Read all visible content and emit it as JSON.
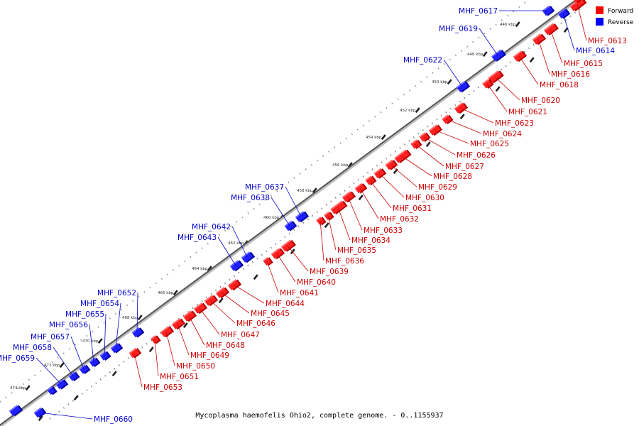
{
  "caption": "Mycoplasma haemofelis Ohio2, complete genome. - 0..1155937",
  "legend": [
    {
      "label": "Forward",
      "color": "#ff0000"
    },
    {
      "label": "Reverse",
      "color": "#0000ff"
    }
  ],
  "colors": {
    "forward": "#ff2020",
    "forward_dark": "#b00000",
    "reverse": "#2020ff",
    "reverse_dark": "#0000a0",
    "forward_label": "#cc0000",
    "reverse_label": "#0000cc",
    "backbone": "#555555"
  },
  "scale_ticks": [
    {
      "label": "446 kbp"
    },
    {
      "label": "448 kbp"
    },
    {
      "label": "450 kbp"
    },
    {
      "label": "452 kbp"
    },
    {
      "label": "454 kbp"
    },
    {
      "label": "456 kbp"
    },
    {
      "label": "458 kbp"
    },
    {
      "label": "460 kbp"
    },
    {
      "label": "462 kbp"
    },
    {
      "label": "464 kbp"
    },
    {
      "label": "466 kbp"
    },
    {
      "label": "468 kbp"
    },
    {
      "label": "470 kbp"
    },
    {
      "label": "472 kbp"
    },
    {
      "label": "474 kbp"
    }
  ],
  "genes": [
    {
      "id": "MHF_0613",
      "strand": "forward"
    },
    {
      "id": "MHF_0614",
      "strand": "reverse"
    },
    {
      "id": "MHF_0615",
      "strand": "forward"
    },
    {
      "id": "MHF_0616",
      "strand": "forward"
    },
    {
      "id": "MHF_0617",
      "strand": "reverse"
    },
    {
      "id": "MHF_0618",
      "strand": "forward"
    },
    {
      "id": "MHF_0619",
      "strand": "reverse"
    },
    {
      "id": "MHF_0620",
      "strand": "forward"
    },
    {
      "id": "MHF_0621",
      "strand": "forward"
    },
    {
      "id": "MHF_0622",
      "strand": "reverse"
    },
    {
      "id": "MHF_0623",
      "strand": "forward"
    },
    {
      "id": "MHF_0624",
      "strand": "forward"
    },
    {
      "id": "MHF_0625",
      "strand": "forward"
    },
    {
      "id": "MHF_0626",
      "strand": "forward"
    },
    {
      "id": "MHF_0627",
      "strand": "forward"
    },
    {
      "id": "MHF_0628",
      "strand": "forward"
    },
    {
      "id": "MHF_0629",
      "strand": "forward"
    },
    {
      "id": "MHF_0630",
      "strand": "forward"
    },
    {
      "id": "MHF_0631",
      "strand": "forward"
    },
    {
      "id": "MHF_0632",
      "strand": "forward"
    },
    {
      "id": "MHF_0633",
      "strand": "forward"
    },
    {
      "id": "MHF_0634",
      "strand": "forward"
    },
    {
      "id": "MHF_0635",
      "strand": "forward"
    },
    {
      "id": "MHF_0636",
      "strand": "forward"
    },
    {
      "id": "MHF_0637",
      "strand": "reverse"
    },
    {
      "id": "MHF_0638",
      "strand": "reverse"
    },
    {
      "id": "MHF_0639",
      "strand": "forward"
    },
    {
      "id": "MHF_0640",
      "strand": "forward"
    },
    {
      "id": "MHF_0641",
      "strand": "forward"
    },
    {
      "id": "MHF_0642",
      "strand": "reverse"
    },
    {
      "id": "MHF_0643",
      "strand": "reverse"
    },
    {
      "id": "MHF_0644",
      "strand": "forward"
    },
    {
      "id": "MHF_0645",
      "strand": "forward"
    },
    {
      "id": "MHF_0646",
      "strand": "forward"
    },
    {
      "id": "MHF_0647",
      "strand": "forward"
    },
    {
      "id": "MHF_0648",
      "strand": "forward"
    },
    {
      "id": "MHF_0649",
      "strand": "forward"
    },
    {
      "id": "MHF_0650",
      "strand": "forward"
    },
    {
      "id": "MHF_0651",
      "strand": "forward"
    },
    {
      "id": "MHF_0652",
      "strand": "reverse"
    },
    {
      "id": "MHF_0653",
      "strand": "forward"
    },
    {
      "id": "MHF_0654",
      "strand": "reverse"
    },
    {
      "id": "MHF_0655",
      "strand": "reverse"
    },
    {
      "id": "MHF_0656",
      "strand": "reverse"
    },
    {
      "id": "MHF_0657",
      "strand": "reverse"
    },
    {
      "id": "MHF_0658",
      "strand": "reverse"
    },
    {
      "id": "MHF_0659",
      "strand": "reverse"
    },
    {
      "id": "MHF_0660",
      "strand": "reverse"
    }
  ]
}
